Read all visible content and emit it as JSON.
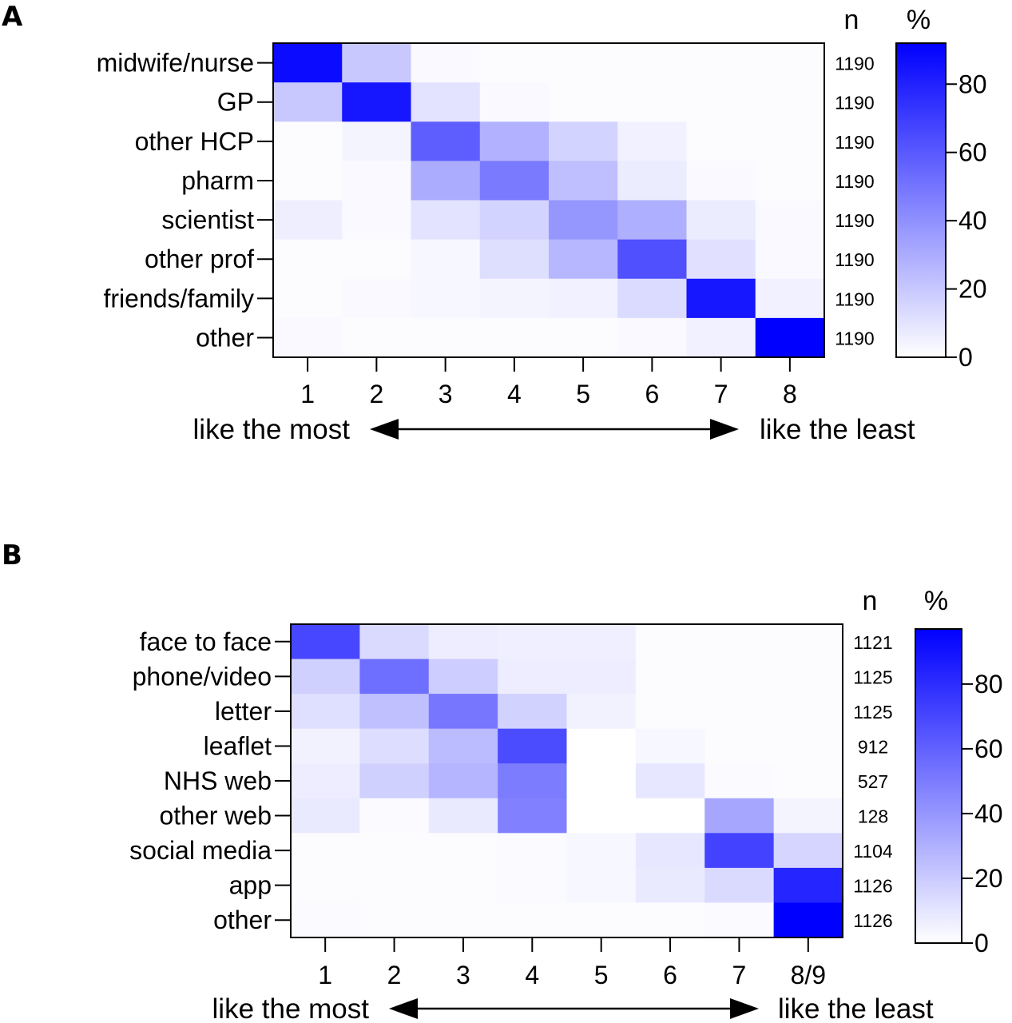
{
  "chart_data": [
    {
      "type": "heatmap",
      "panel_label": "A",
      "rows": [
        "midwife/nurse",
        "GP",
        "other HCP",
        "pharm",
        "scientist",
        "other prof",
        "friends/family",
        "other"
      ],
      "columns": [
        "1",
        "2",
        "3",
        "4",
        "5",
        "6",
        "7",
        "8"
      ],
      "values": [
        [
          88,
          20,
          2,
          1,
          1,
          1,
          1,
          1
        ],
        [
          20,
          84,
          10,
          2,
          1,
          1,
          1,
          1
        ],
        [
          1,
          4,
          58,
          28,
          16,
          5,
          1,
          1
        ],
        [
          1,
          2,
          30,
          48,
          23,
          7,
          2,
          1
        ],
        [
          6,
          2,
          10,
          16,
          38,
          29,
          7,
          2
        ],
        [
          1,
          1,
          3,
          12,
          26,
          63,
          11,
          2
        ],
        [
          1,
          2,
          3,
          4,
          5,
          13,
          84,
          5
        ],
        [
          2,
          1,
          1,
          1,
          1,
          2,
          5,
          97
        ]
      ],
      "n_header": "n",
      "n_values": [
        "1190",
        "1190",
        "1190",
        "1190",
        "1190",
        "1190",
        "1190",
        "1190"
      ],
      "colorbar_label": "%",
      "colorbar_ticks": [
        "0",
        "20",
        "40",
        "60",
        "80"
      ],
      "colorbar_range": [
        0,
        92
      ],
      "color_low": "#ffffff",
      "color_high": "#0000ff",
      "arrow_left_label": "like the most",
      "arrow_right_label": "like the least"
    },
    {
      "type": "heatmap",
      "panel_label": "B",
      "rows": [
        "face to face",
        "phone/video",
        "letter",
        "leaflet",
        "NHS web",
        "other web",
        "social media",
        "app",
        "other"
      ],
      "columns": [
        "1",
        "2",
        "3",
        "4",
        "5",
        "6",
        "7",
        "8/9"
      ],
      "values": [
        [
          70,
          14,
          7,
          6,
          6,
          1,
          1,
          1
        ],
        [
          18,
          55,
          19,
          7,
          7,
          1,
          1,
          1
        ],
        [
          12,
          24,
          52,
          17,
          5,
          1,
          1,
          1
        ],
        [
          5,
          13,
          26,
          68,
          0,
          3,
          1,
          1
        ],
        [
          7,
          18,
          28,
          50,
          0,
          9,
          2,
          1
        ],
        [
          8,
          2,
          8,
          48,
          0,
          0,
          34,
          4
        ],
        [
          1,
          1,
          1,
          2,
          3,
          9,
          72,
          16
        ],
        [
          1,
          1,
          1,
          2,
          3,
          8,
          14,
          83
        ],
        [
          2,
          1,
          1,
          1,
          1,
          1,
          2,
          97
        ]
      ],
      "n_header": "n",
      "n_values": [
        "1121",
        "1125",
        "1125",
        "912",
        "527",
        "128",
        "1104",
        "1126",
        "1126"
      ],
      "colorbar_label": "%",
      "colorbar_ticks": [
        "0",
        "20",
        "40",
        "60",
        "80"
      ],
      "colorbar_range": [
        0,
        97
      ],
      "color_low": "#ffffff",
      "color_high": "#0000ff",
      "arrow_left_label": "like the most",
      "arrow_right_label": "like the least"
    }
  ]
}
